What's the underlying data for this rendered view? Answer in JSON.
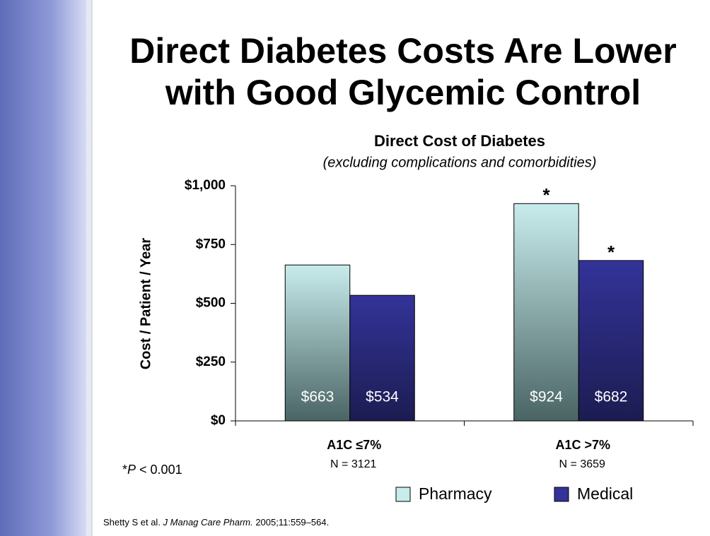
{
  "title_lines": [
    "Direct Diabetes Costs Are Lower",
    "with Good Glycemic Control"
  ],
  "chart_data": {
    "type": "bar",
    "title": "Direct Cost of Diabetes",
    "subtitle": "(excluding complications and comorbidities)",
    "y_label": "Cost / Patient / Year",
    "categories": [
      "A1C ≤7%",
      "A1C >7%"
    ],
    "category_notes": [
      "N = 3121",
      "N = 3659"
    ],
    "series": [
      {
        "name": "Pharmacy",
        "color": "#c8ecec",
        "values": [
          663,
          924
        ],
        "value_labels": [
          "$663",
          "$924"
        ]
      },
      {
        "name": "Medical",
        "color": "#333399",
        "values": [
          534,
          682
        ],
        "value_labels": [
          "$534",
          "$682"
        ]
      }
    ],
    "annotations": [
      {
        "text": "*",
        "series": 0,
        "index": 1
      },
      {
        "text": "*",
        "series": 1,
        "index": 1
      }
    ],
    "ylim": [
      0,
      1000
    ],
    "yticks": [
      {
        "value": 0,
        "label": "$0"
      },
      {
        "value": 250,
        "label": "$250"
      },
      {
        "value": 500,
        "label": "$500"
      },
      {
        "value": 750,
        "label": "$750"
      },
      {
        "value": 1000,
        "label": "$1,000"
      }
    ]
  },
  "footnote": {
    "prefix": "*",
    "italic": "P",
    "rest": " < 0.001"
  },
  "source": {
    "authors": "Shetty S et al. ",
    "journal": "J Manag Care Pharm.",
    "rest": " 2005;11:559–564."
  }
}
